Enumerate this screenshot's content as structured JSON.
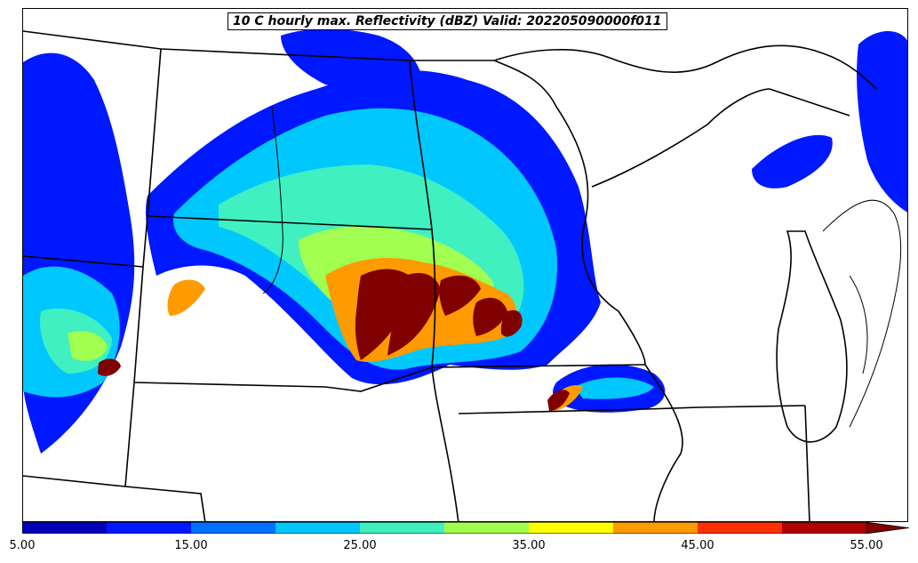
{
  "title": "10 C hourly max. Reflectivity (dBZ) Valid: 202205090000f011",
  "colorbar": {
    "colors": [
      "#0000b8",
      "#0018ff",
      "#0070ff",
      "#00c8ff",
      "#40f0c0",
      "#a0ff50",
      "#ffff00",
      "#ff9a00",
      "#ff3000",
      "#b00000"
    ],
    "extend_color": "#800000",
    "ticks": [
      "5.00",
      "15.00",
      "25.00",
      "35.00",
      "45.00",
      "55.00"
    ]
  },
  "map": {
    "region": "Upper Midwest / Northern Plains",
    "fill_colors": {
      "low": "#0018ff",
      "moderate": "#00c8ff",
      "mid": "#40f0c0",
      "elevated": "#a0ff50",
      "high": "#ff9a00",
      "severe": "#800000"
    }
  }
}
